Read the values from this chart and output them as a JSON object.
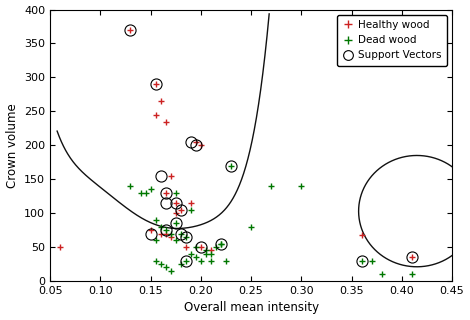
{
  "healthy_x": [
    0.13,
    0.155,
    0.16,
    0.155,
    0.165,
    0.17,
    0.175,
    0.18,
    0.19,
    0.195,
    0.2,
    0.15,
    0.16,
    0.165,
    0.17,
    0.185,
    0.2,
    0.21,
    0.165,
    0.175,
    0.36,
    0.41,
    0.06
  ],
  "healthy_y": [
    370,
    290,
    265,
    245,
    235,
    155,
    115,
    105,
    115,
    205,
    200,
    75,
    70,
    70,
    65,
    50,
    50,
    45,
    130,
    100,
    68,
    35,
    50
  ],
  "dead_x": [
    0.13,
    0.14,
    0.145,
    0.15,
    0.155,
    0.16,
    0.165,
    0.17,
    0.175,
    0.18,
    0.185,
    0.19,
    0.195,
    0.2,
    0.205,
    0.21,
    0.215,
    0.22,
    0.225,
    0.23,
    0.25,
    0.27,
    0.3,
    0.36,
    0.37,
    0.38,
    0.41,
    0.16,
    0.17,
    0.18,
    0.175,
    0.185,
    0.155,
    0.165,
    0.19,
    0.195,
    0.205,
    0.21,
    0.22,
    0.175,
    0.155
  ],
  "dead_y": [
    140,
    130,
    130,
    135,
    90,
    80,
    75,
    70,
    85,
    70,
    65,
    40,
    35,
    30,
    40,
    30,
    50,
    55,
    30,
    170,
    80,
    140,
    140,
    30,
    30,
    10,
    10,
    25,
    15,
    25,
    60,
    30,
    30,
    20,
    105,
    50,
    45,
    40,
    55,
    130,
    60
  ],
  "sv_x": [
    0.13,
    0.155,
    0.16,
    0.165,
    0.175,
    0.18,
    0.185,
    0.19,
    0.195,
    0.2,
    0.15,
    0.165,
    0.175,
    0.18,
    0.185,
    0.36,
    0.41,
    0.165,
    0.22,
    0.23
  ],
  "sv_y": [
    370,
    290,
    155,
    115,
    115,
    105,
    65,
    205,
    200,
    50,
    70,
    75,
    85,
    70,
    30,
    30,
    35,
    130,
    55,
    170
  ],
  "xlim": [
    0.05,
    0.45
  ],
  "ylim": [
    0,
    400
  ],
  "xlabel": "Overall mean intensity",
  "ylabel": "Crown volume",
  "legend_labels": [
    "Healthy wood",
    "Dead wood",
    "Support Vectors"
  ],
  "healthy_color": "#cc2222",
  "dead_color": "#007700",
  "sv_color": "#000000",
  "boundary_color": "#111111",
  "bg_color": "#ffffff"
}
